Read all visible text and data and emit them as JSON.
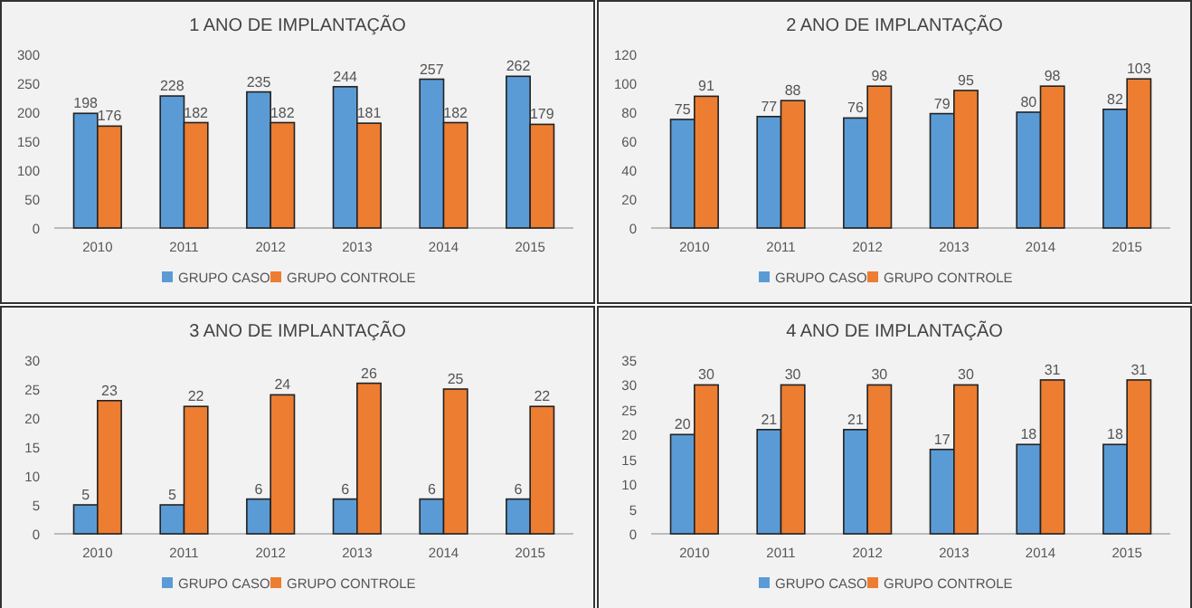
{
  "chart_data": [
    {
      "type": "bar",
      "title": "1 ANO DE IMPLANTAÇÃO",
      "categories": [
        "2010",
        "2011",
        "2012",
        "2013",
        "2014",
        "2015"
      ],
      "ylim": [
        0,
        300
      ],
      "yticks": [
        0,
        50,
        100,
        150,
        200,
        250,
        300
      ],
      "legend": "bottom",
      "data_labels": true,
      "series": [
        {
          "name": "GRUPO CASO",
          "color": "#5b9bd5",
          "values": [
            198,
            228,
            235,
            244,
            257,
            262
          ]
        },
        {
          "name": "GRUPO CONTROLE",
          "color": "#ed7d31",
          "values": [
            176,
            182,
            182,
            181,
            182,
            179
          ]
        }
      ]
    },
    {
      "type": "bar",
      "title": "2 ANO DE IMPLANTAÇÃO",
      "categories": [
        "2010",
        "2011",
        "2012",
        "2013",
        "2014",
        "2015"
      ],
      "ylim": [
        0,
        120
      ],
      "yticks": [
        0,
        20,
        40,
        60,
        80,
        100,
        120
      ],
      "legend": "bottom",
      "data_labels": true,
      "series": [
        {
          "name": "GRUPO CASO",
          "color": "#5b9bd5",
          "values": [
            75,
            77,
            76,
            79,
            80,
            82
          ]
        },
        {
          "name": "GRUPO CONTROLE",
          "color": "#ed7d31",
          "values": [
            91,
            88,
            98,
            95,
            98,
            103
          ]
        }
      ]
    },
    {
      "type": "bar",
      "title": "3 ANO DE IMPLANTAÇÃO",
      "categories": [
        "2010",
        "2011",
        "2012",
        "2013",
        "2014",
        "2015"
      ],
      "ylim": [
        0,
        30
      ],
      "yticks": [
        0,
        5,
        10,
        15,
        20,
        25,
        30
      ],
      "legend": "bottom",
      "data_labels": true,
      "series": [
        {
          "name": "GRUPO CASO",
          "color": "#5b9bd5",
          "values": [
            5,
            5,
            6,
            6,
            6,
            6
          ]
        },
        {
          "name": "GRUPO CONTROLE",
          "color": "#ed7d31",
          "values": [
            23,
            22,
            24,
            26,
            25,
            22
          ]
        }
      ]
    },
    {
      "type": "bar",
      "title": "4 ANO DE IMPLANTAÇÃO",
      "categories": [
        "2010",
        "2011",
        "2012",
        "2013",
        "2014",
        "2015"
      ],
      "ylim": [
        0,
        35
      ],
      "yticks": [
        0,
        5,
        10,
        15,
        20,
        25,
        30,
        35
      ],
      "legend": "bottom",
      "data_labels": true,
      "series": [
        {
          "name": "GRUPO CASO",
          "color": "#5b9bd5",
          "values": [
            20,
            21,
            21,
            17,
            18,
            18
          ]
        },
        {
          "name": "GRUPO CONTROLE",
          "color": "#ed7d31",
          "values": [
            30,
            30,
            30,
            30,
            31,
            31
          ]
        }
      ]
    }
  ]
}
